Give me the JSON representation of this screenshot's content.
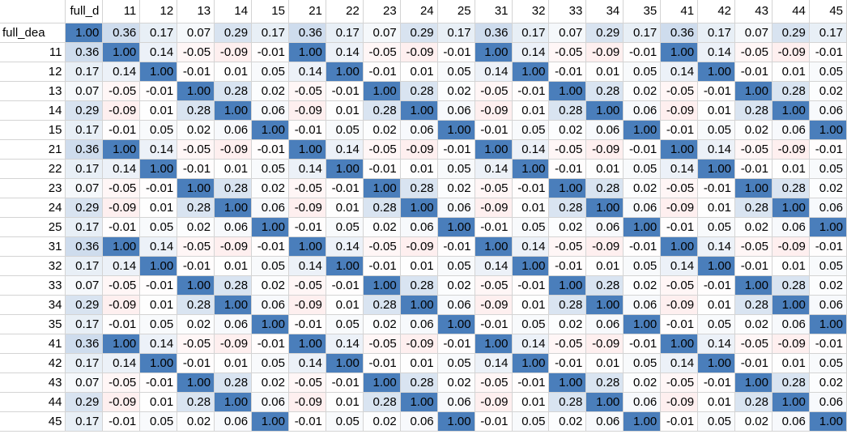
{
  "sheet": {
    "column_headers": [
      "full_d",
      "11",
      "12",
      "13",
      "14",
      "15",
      "21",
      "22",
      "23",
      "24",
      "25",
      "31",
      "32",
      "33",
      "34",
      "35",
      "41",
      "42",
      "43",
      "44",
      "45"
    ],
    "row_labels": [
      "full_dea",
      "11",
      "12",
      "13",
      "14",
      "15",
      "21",
      "22",
      "23",
      "24",
      "25",
      "31",
      "32",
      "33",
      "34",
      "35",
      "41",
      "42",
      "43",
      "44",
      "45"
    ],
    "values": [
      [
        "1.00",
        "0.36",
        "0.17",
        "0.07",
        "0.29",
        "0.17",
        "0.36",
        "0.17",
        "0.07",
        "0.29",
        "0.17",
        "0.36",
        "0.17",
        "0.07",
        "0.29",
        "0.17",
        "0.36",
        "0.17",
        "0.07",
        "0.29",
        "0.17"
      ],
      [
        "0.36",
        "1.00",
        "0.14",
        "-0.05",
        "-0.09",
        "-0.01",
        "1.00",
        "0.14",
        "-0.05",
        "-0.09",
        "-0.01",
        "1.00",
        "0.14",
        "-0.05",
        "-0.09",
        "-0.01",
        "1.00",
        "0.14",
        "-0.05",
        "-0.09",
        "-0.01"
      ],
      [
        "0.17",
        "0.14",
        "1.00",
        "-0.01",
        "0.01",
        "0.05",
        "0.14",
        "1.00",
        "-0.01",
        "0.01",
        "0.05",
        "0.14",
        "1.00",
        "-0.01",
        "0.01",
        "0.05",
        "0.14",
        "1.00",
        "-0.01",
        "0.01",
        "0.05"
      ],
      [
        "0.07",
        "-0.05",
        "-0.01",
        "1.00",
        "0.28",
        "0.02",
        "-0.05",
        "-0.01",
        "1.00",
        "0.28",
        "0.02",
        "-0.05",
        "-0.01",
        "1.00",
        "0.28",
        "0.02",
        "-0.05",
        "-0.01",
        "1.00",
        "0.28",
        "0.02"
      ],
      [
        "0.29",
        "-0.09",
        "0.01",
        "0.28",
        "1.00",
        "0.06",
        "-0.09",
        "0.01",
        "0.28",
        "1.00",
        "0.06",
        "-0.09",
        "0.01",
        "0.28",
        "1.00",
        "0.06",
        "-0.09",
        "0.01",
        "0.28",
        "1.00",
        "0.06"
      ],
      [
        "0.17",
        "-0.01",
        "0.05",
        "0.02",
        "0.06",
        "1.00",
        "-0.01",
        "0.05",
        "0.02",
        "0.06",
        "1.00",
        "-0.01",
        "0.05",
        "0.02",
        "0.06",
        "1.00",
        "-0.01",
        "0.05",
        "0.02",
        "0.06",
        "1.00"
      ],
      [
        "0.36",
        "1.00",
        "0.14",
        "-0.05",
        "-0.09",
        "-0.01",
        "1.00",
        "0.14",
        "-0.05",
        "-0.09",
        "-0.01",
        "1.00",
        "0.14",
        "-0.05",
        "-0.09",
        "-0.01",
        "1.00",
        "0.14",
        "-0.05",
        "-0.09",
        "-0.01"
      ],
      [
        "0.17",
        "0.14",
        "1.00",
        "-0.01",
        "0.01",
        "0.05",
        "0.14",
        "1.00",
        "-0.01",
        "0.01",
        "0.05",
        "0.14",
        "1.00",
        "-0.01",
        "0.01",
        "0.05",
        "0.14",
        "1.00",
        "-0.01",
        "0.01",
        "0.05"
      ],
      [
        "0.07",
        "-0.05",
        "-0.01",
        "1.00",
        "0.28",
        "0.02",
        "-0.05",
        "-0.01",
        "1.00",
        "0.28",
        "0.02",
        "-0.05",
        "-0.01",
        "1.00",
        "0.28",
        "0.02",
        "-0.05",
        "-0.01",
        "1.00",
        "0.28",
        "0.02"
      ],
      [
        "0.29",
        "-0.09",
        "0.01",
        "0.28",
        "1.00",
        "0.06",
        "-0.09",
        "0.01",
        "0.28",
        "1.00",
        "0.06",
        "-0.09",
        "0.01",
        "0.28",
        "1.00",
        "0.06",
        "-0.09",
        "0.01",
        "0.28",
        "1.00",
        "0.06"
      ],
      [
        "0.17",
        "-0.01",
        "0.05",
        "0.02",
        "0.06",
        "1.00",
        "-0.01",
        "0.05",
        "0.02",
        "0.06",
        "1.00",
        "-0.01",
        "0.05",
        "0.02",
        "0.06",
        "1.00",
        "-0.01",
        "0.05",
        "0.02",
        "0.06",
        "1.00"
      ],
      [
        "0.36",
        "1.00",
        "0.14",
        "-0.05",
        "-0.09",
        "-0.01",
        "1.00",
        "0.14",
        "-0.05",
        "-0.09",
        "-0.01",
        "1.00",
        "0.14",
        "-0.05",
        "-0.09",
        "-0.01",
        "1.00",
        "0.14",
        "-0.05",
        "-0.09",
        "-0.01"
      ],
      [
        "0.17",
        "0.14",
        "1.00",
        "-0.01",
        "0.01",
        "0.05",
        "0.14",
        "1.00",
        "-0.01",
        "0.01",
        "0.05",
        "0.14",
        "1.00",
        "-0.01",
        "0.01",
        "0.05",
        "0.14",
        "1.00",
        "-0.01",
        "0.01",
        "0.05"
      ],
      [
        "0.07",
        "-0.05",
        "-0.01",
        "1.00",
        "0.28",
        "0.02",
        "-0.05",
        "-0.01",
        "1.00",
        "0.28",
        "0.02",
        "-0.05",
        "-0.01",
        "1.00",
        "0.28",
        "0.02",
        "-0.05",
        "-0.01",
        "1.00",
        "0.28",
        "0.02"
      ],
      [
        "0.29",
        "-0.09",
        "0.01",
        "0.28",
        "1.00",
        "0.06",
        "-0.09",
        "0.01",
        "0.28",
        "1.00",
        "0.06",
        "-0.09",
        "0.01",
        "0.28",
        "1.00",
        "0.06",
        "-0.09",
        "0.01",
        "0.28",
        "1.00",
        "0.06"
      ],
      [
        "0.17",
        "-0.01",
        "0.05",
        "0.02",
        "0.06",
        "1.00",
        "-0.01",
        "0.05",
        "0.02",
        "0.06",
        "1.00",
        "-0.01",
        "0.05",
        "0.02",
        "0.06",
        "1.00",
        "-0.01",
        "0.05",
        "0.02",
        "0.06",
        "1.00"
      ],
      [
        "0.36",
        "1.00",
        "0.14",
        "-0.05",
        "-0.09",
        "-0.01",
        "1.00",
        "0.14",
        "-0.05",
        "-0.09",
        "-0.01",
        "1.00",
        "0.14",
        "-0.05",
        "-0.09",
        "-0.01",
        "1.00",
        "0.14",
        "-0.05",
        "-0.09",
        "-0.01"
      ],
      [
        "0.17",
        "0.14",
        "1.00",
        "-0.01",
        "0.01",
        "0.05",
        "0.14",
        "1.00",
        "-0.01",
        "0.01",
        "0.05",
        "0.14",
        "1.00",
        "-0.01",
        "0.01",
        "0.05",
        "0.14",
        "1.00",
        "-0.01",
        "0.01",
        "0.05"
      ],
      [
        "0.07",
        "-0.05",
        "-0.01",
        "1.00",
        "0.28",
        "0.02",
        "-0.05",
        "-0.01",
        "1.00",
        "0.28",
        "0.02",
        "-0.05",
        "-0.01",
        "1.00",
        "0.28",
        "0.02",
        "-0.05",
        "-0.01",
        "1.00",
        "0.28",
        "0.02"
      ],
      [
        "0.29",
        "-0.09",
        "0.01",
        "0.28",
        "1.00",
        "0.06",
        "-0.09",
        "0.01",
        "0.28",
        "1.00",
        "0.06",
        "-0.09",
        "0.01",
        "0.28",
        "1.00",
        "0.06",
        "-0.09",
        "0.01",
        "0.28",
        "1.00",
        "0.06"
      ],
      [
        "0.17",
        "-0.01",
        "0.05",
        "0.02",
        "0.06",
        "1.00",
        "-0.01",
        "0.05",
        "0.02",
        "0.06",
        "1.00",
        "-0.01",
        "0.05",
        "0.02",
        "0.06",
        "1.00",
        "-0.01",
        "0.05",
        "0.02",
        "0.06",
        "1.00"
      ]
    ],
    "colors": {
      "scale_max": "#4a7ebb",
      "scale_mid": "#ffffff",
      "scale_neg": "#f8696b",
      "gridline": "#d4d4d4"
    }
  }
}
